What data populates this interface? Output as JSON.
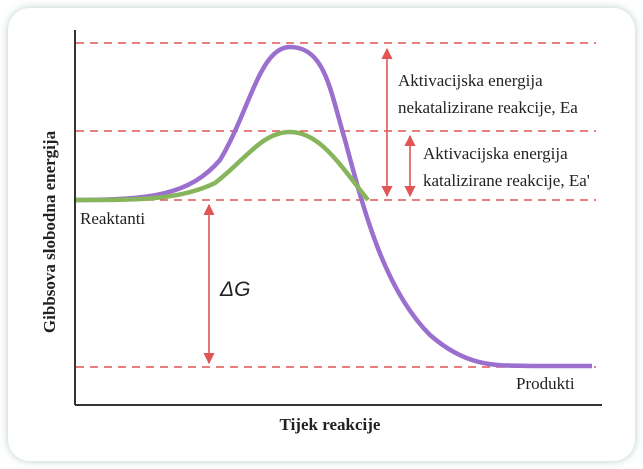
{
  "diagram": {
    "y_axis_label": "Gibbsova slobodna energija",
    "x_axis_label": "Tijek reakcije",
    "ea_uncatalyzed": [
      "Aktivacijska energija",
      "nekatalizirane reakcije, Ea"
    ],
    "ea_catalyzed": [
      "Aktivacijska energija",
      "katalizirane reakcije, Ea'"
    ],
    "reactants": "Reaktanti",
    "products": "Produkti",
    "delta_g": "ΔG"
  }
}
